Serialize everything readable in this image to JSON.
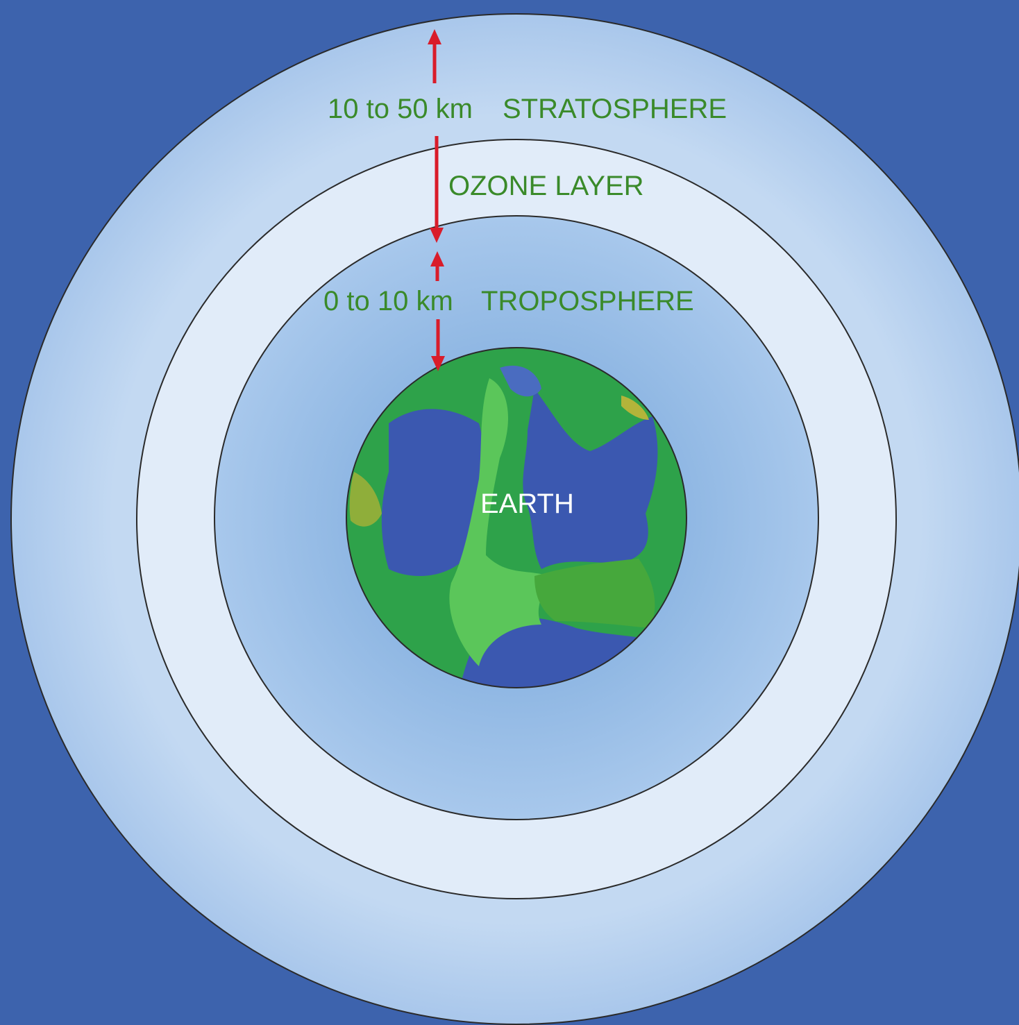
{
  "colors": {
    "background": "#3d63ad",
    "stratosphere": "#b7d1ee",
    "ozone_layer": "#e1ecf9",
    "troposphere": "#94bbe4",
    "ocean": "#3b58b0",
    "land": "#2ea24a",
    "land_light": "#5bc65a",
    "label_text": "#3a8a2a",
    "earth_text": "#ffffff",
    "arrow": "#d91c2a",
    "outline": "#2a2a2a"
  },
  "labels": {
    "stratosphere_range": "10 to 50 km",
    "stratosphere_name": "STRATOSPHERE",
    "ozone_layer": "OZONE LAYER",
    "troposphere_range": "0 to 10 km",
    "troposphere_name": "TROPOSPHERE",
    "earth": "EARTH"
  }
}
